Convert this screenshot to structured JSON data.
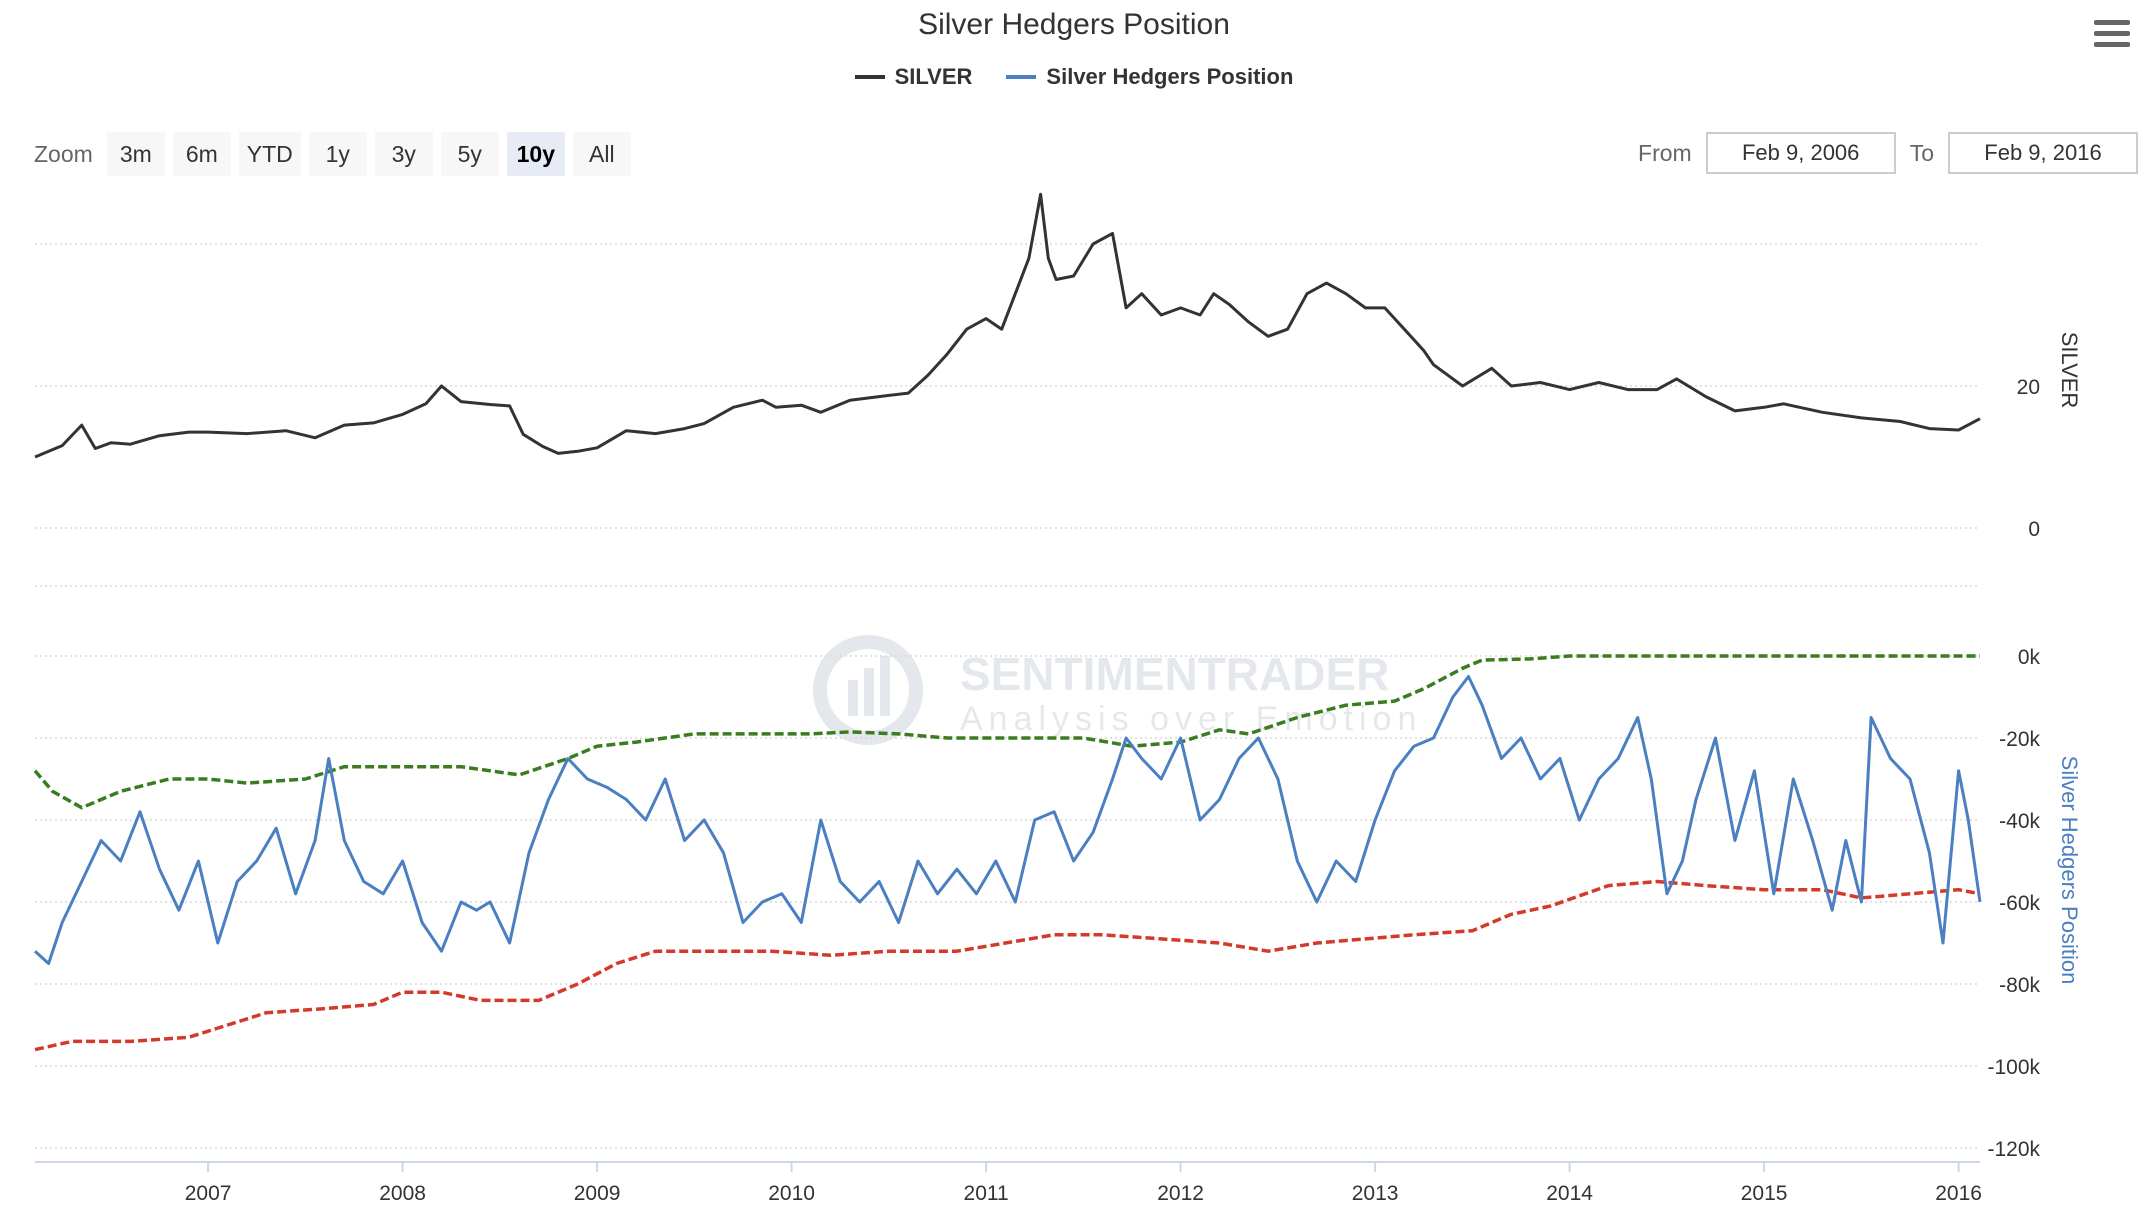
{
  "title": "Silver Hedgers Position",
  "legend": [
    {
      "label": "SILVER",
      "color": "#333333"
    },
    {
      "label": "Silver Hedgers Position",
      "color": "#4a7fc1"
    }
  ],
  "toolbar": {
    "zoom_label": "Zoom",
    "zoom_buttons": [
      "3m",
      "6m",
      "YTD",
      "1y",
      "3y",
      "5y",
      "10y",
      "All"
    ],
    "zoom_active": "10y",
    "from_label": "From",
    "from_value": "Feb 9, 2006",
    "to_label": "To",
    "to_value": "Feb 9, 2016",
    "menu_icon": "hamburger-menu-icon"
  },
  "watermark": {
    "line1": "SENTIMENTRADER",
    "line2": "Analysis over Emotion"
  },
  "chart_data": [
    {
      "type": "line",
      "title": "Silver Hedgers Position",
      "ylabel": "SILVER",
      "ylim": [
        0,
        50
      ],
      "yticks": [
        "0",
        "20"
      ],
      "x_ticks": [
        "2007",
        "2008",
        "2009",
        "2010",
        "2011",
        "2012",
        "2013",
        "2014",
        "2015",
        "2016"
      ],
      "xlim": [
        2006.11,
        2016.11
      ],
      "grid": true,
      "series": [
        {
          "name": "SILVER",
          "color": "#333333",
          "x": [
            2006.11,
            2006.25,
            2006.35,
            2006.42,
            2006.5,
            2006.6,
            2006.75,
            2006.9,
            2007.0,
            2007.2,
            2007.4,
            2007.55,
            2007.7,
            2007.85,
            2008.0,
            2008.12,
            2008.2,
            2008.3,
            2008.45,
            2008.55,
            2008.62,
            2008.72,
            2008.8,
            2008.9,
            2009.0,
            2009.15,
            2009.3,
            2009.45,
            2009.55,
            2009.7,
            2009.85,
            2009.92,
            2010.05,
            2010.15,
            2010.3,
            2010.45,
            2010.6,
            2010.7,
            2010.8,
            2010.9,
            2011.0,
            2011.08,
            2011.15,
            2011.22,
            2011.28,
            2011.32,
            2011.36,
            2011.45,
            2011.55,
            2011.65,
            2011.72,
            2011.8,
            2011.9,
            2012.0,
            2012.1,
            2012.17,
            2012.25,
            2012.35,
            2012.45,
            2012.55,
            2012.65,
            2012.75,
            2012.85,
            2012.95,
            2013.05,
            2013.15,
            2013.25,
            2013.3,
            2013.45,
            2013.6,
            2013.7,
            2013.85,
            2014.0,
            2014.15,
            2014.3,
            2014.45,
            2014.55,
            2014.7,
            2014.85,
            2015.0,
            2015.1,
            2015.3,
            2015.5,
            2015.7,
            2015.85,
            2016.0,
            2016.11
          ],
          "y": [
            10.0,
            11.6,
            14.5,
            11.2,
            12.0,
            11.8,
            13.0,
            13.5,
            13.5,
            13.3,
            13.7,
            12.7,
            14.5,
            14.8,
            16.0,
            17.5,
            20.0,
            17.8,
            17.4,
            17.2,
            13.2,
            11.5,
            10.5,
            10.8,
            11.3,
            13.7,
            13.3,
            14.0,
            14.7,
            17.0,
            18.0,
            17.0,
            17.3,
            16.3,
            18.0,
            18.5,
            19.0,
            21.5,
            24.5,
            28.0,
            29.5,
            28.0,
            33.0,
            38.0,
            47.0,
            38.0,
            35.0,
            35.5,
            40.0,
            41.5,
            31.0,
            33.0,
            30.0,
            31.0,
            30.0,
            33.0,
            31.5,
            29.0,
            27.0,
            28.0,
            33.0,
            34.5,
            33.0,
            31.0,
            31.0,
            28.0,
            25.0,
            23.0,
            20.0,
            22.5,
            20.0,
            20.5,
            19.5,
            20.5,
            19.5,
            19.5,
            21.0,
            18.5,
            16.5,
            17.0,
            17.5,
            16.3,
            15.5,
            15.0,
            14.0,
            13.8,
            15.4
          ]
        }
      ]
    },
    {
      "type": "line",
      "title": "Silver Hedgers Position",
      "ylabel": "Silver Hedgers Position",
      "ylim": [
        -120000,
        0
      ],
      "yticks": [
        "0k",
        "-20k",
        "-40k",
        "-60k",
        "-80k",
        "-100k",
        "-120k"
      ],
      "x_ticks": [
        "2007",
        "2008",
        "2009",
        "2010",
        "2011",
        "2012",
        "2013",
        "2014",
        "2015",
        "2016"
      ],
      "xlim": [
        2006.11,
        2016.11
      ],
      "grid": true,
      "series": [
        {
          "name": "Silver Hedgers Position",
          "color": "#4a7fc1",
          "x": [
            2006.11,
            2006.18,
            2006.25,
            2006.35,
            2006.45,
            2006.55,
            2006.65,
            2006.75,
            2006.85,
            2006.95,
            2007.05,
            2007.15,
            2007.25,
            2007.35,
            2007.45,
            2007.55,
            2007.62,
            2007.7,
            2007.8,
            2007.9,
            2008.0,
            2008.1,
            2008.2,
            2008.3,
            2008.38,
            2008.45,
            2008.55,
            2008.65,
            2008.75,
            2008.85,
            2008.95,
            2009.05,
            2009.15,
            2009.25,
            2009.35,
            2009.45,
            2009.55,
            2009.65,
            2009.75,
            2009.85,
            2009.95,
            2010.05,
            2010.15,
            2010.25,
            2010.35,
            2010.45,
            2010.55,
            2010.65,
            2010.75,
            2010.85,
            2010.95,
            2011.05,
            2011.15,
            2011.25,
            2011.35,
            2011.45,
            2011.55,
            2011.65,
            2011.72,
            2011.8,
            2011.9,
            2012.0,
            2012.1,
            2012.2,
            2012.3,
            2012.4,
            2012.5,
            2012.6,
            2012.7,
            2012.8,
            2012.9,
            2013.0,
            2013.1,
            2013.2,
            2013.3,
            2013.4,
            2013.48,
            2013.55,
            2013.65,
            2013.75,
            2013.85,
            2013.95,
            2014.05,
            2014.15,
            2014.25,
            2014.35,
            2014.42,
            2014.5,
            2014.58,
            2014.65,
            2014.75,
            2014.85,
            2014.95,
            2015.05,
            2015.15,
            2015.25,
            2015.35,
            2015.42,
            2015.5,
            2015.55,
            2015.65,
            2015.75,
            2015.85,
            2015.92,
            2016.0,
            2016.05,
            2016.11
          ],
          "y": [
            -72000,
            -75000,
            -65000,
            -55000,
            -45000,
            -50000,
            -38000,
            -52000,
            -62000,
            -50000,
            -70000,
            -55000,
            -50000,
            -42000,
            -58000,
            -45000,
            -25000,
            -45000,
            -55000,
            -58000,
            -50000,
            -65000,
            -72000,
            -60000,
            -62000,
            -60000,
            -70000,
            -48000,
            -35000,
            -25000,
            -30000,
            -32000,
            -35000,
            -40000,
            -30000,
            -45000,
            -40000,
            -48000,
            -65000,
            -60000,
            -58000,
            -65000,
            -40000,
            -55000,
            -60000,
            -55000,
            -65000,
            -50000,
            -58000,
            -52000,
            -58000,
            -50000,
            -60000,
            -40000,
            -38000,
            -50000,
            -43000,
            -30000,
            -20000,
            -25000,
            -30000,
            -20000,
            -40000,
            -35000,
            -25000,
            -20000,
            -30000,
            -50000,
            -60000,
            -50000,
            -55000,
            -40000,
            -28000,
            -22000,
            -20000,
            -10000,
            -5000,
            -12000,
            -25000,
            -20000,
            -30000,
            -25000,
            -40000,
            -30000,
            -25000,
            -15000,
            -30000,
            -58000,
            -50000,
            -35000,
            -20000,
            -45000,
            -28000,
            -58000,
            -30000,
            -45000,
            -62000,
            -45000,
            -60000,
            -15000,
            -25000,
            -30000,
            -48000,
            -70000,
            -28000,
            -40000,
            -60000
          ]
        },
        {
          "name": "",
          "color": "#3a7d1f",
          "x": [
            2006.11,
            2006.2,
            2006.35,
            2006.55,
            2006.8,
            2007.0,
            2007.2,
            2007.5,
            2007.7,
            2008.0,
            2008.3,
            2008.6,
            2008.85,
            2009.0,
            2009.2,
            2009.5,
            2009.8,
            2010.1,
            2010.3,
            2010.55,
            2010.8,
            2011.0,
            2011.2,
            2011.5,
            2011.75,
            2012.0,
            2012.2,
            2012.35,
            2012.6,
            2012.85,
            2013.1,
            2013.25,
            2013.45,
            2013.55,
            2013.8,
            2014.0,
            2014.3,
            2014.6,
            2015.0,
            2015.2,
            2015.4,
            2015.6,
            2015.8,
            2016.11
          ],
          "y": [
            -28000,
            -33000,
            -37000,
            -33000,
            -30000,
            -30000,
            -31000,
            -30000,
            -27000,
            -27000,
            -27000,
            -29000,
            -25000,
            -22000,
            -21000,
            -19000,
            -19000,
            -19000,
            -18500,
            -19000,
            -20000,
            -20000,
            -20000,
            -20000,
            -22000,
            -21000,
            -18000,
            -19000,
            -15000,
            -12000,
            -11000,
            -8000,
            -3000,
            -1000,
            -700,
            0,
            0,
            0,
            0,
            0,
            0,
            0,
            0,
            0
          ]
        },
        {
          "name": "",
          "color": "#d43a2a",
          "x": [
            2006.11,
            2006.3,
            2006.6,
            2006.9,
            2007.1,
            2007.3,
            2007.6,
            2007.85,
            2008.0,
            2008.2,
            2008.4,
            2008.7,
            2008.9,
            2009.1,
            2009.3,
            2009.6,
            2009.9,
            2010.2,
            2010.5,
            2010.85,
            2011.1,
            2011.35,
            2011.6,
            2011.9,
            2012.2,
            2012.45,
            2012.7,
            2012.95,
            2013.2,
            2013.5,
            2013.7,
            2013.9,
            2014.2,
            2014.45,
            2014.7,
            2015.0,
            2015.3,
            2015.5,
            2016.0,
            2016.11
          ],
          "y": [
            -96000,
            -94000,
            -94000,
            -93000,
            -90000,
            -87000,
            -86000,
            -85000,
            -82000,
            -82000,
            -84000,
            -84000,
            -80000,
            -75000,
            -72000,
            -72000,
            -72000,
            -73000,
            -72000,
            -72000,
            -70000,
            -68000,
            -68000,
            -69000,
            -70000,
            -72000,
            -70000,
            -69000,
            -68000,
            -67000,
            -63000,
            -61000,
            -56000,
            -55000,
            -56000,
            -57000,
            -57000,
            -59000,
            -57000,
            -58000
          ]
        }
      ]
    }
  ]
}
